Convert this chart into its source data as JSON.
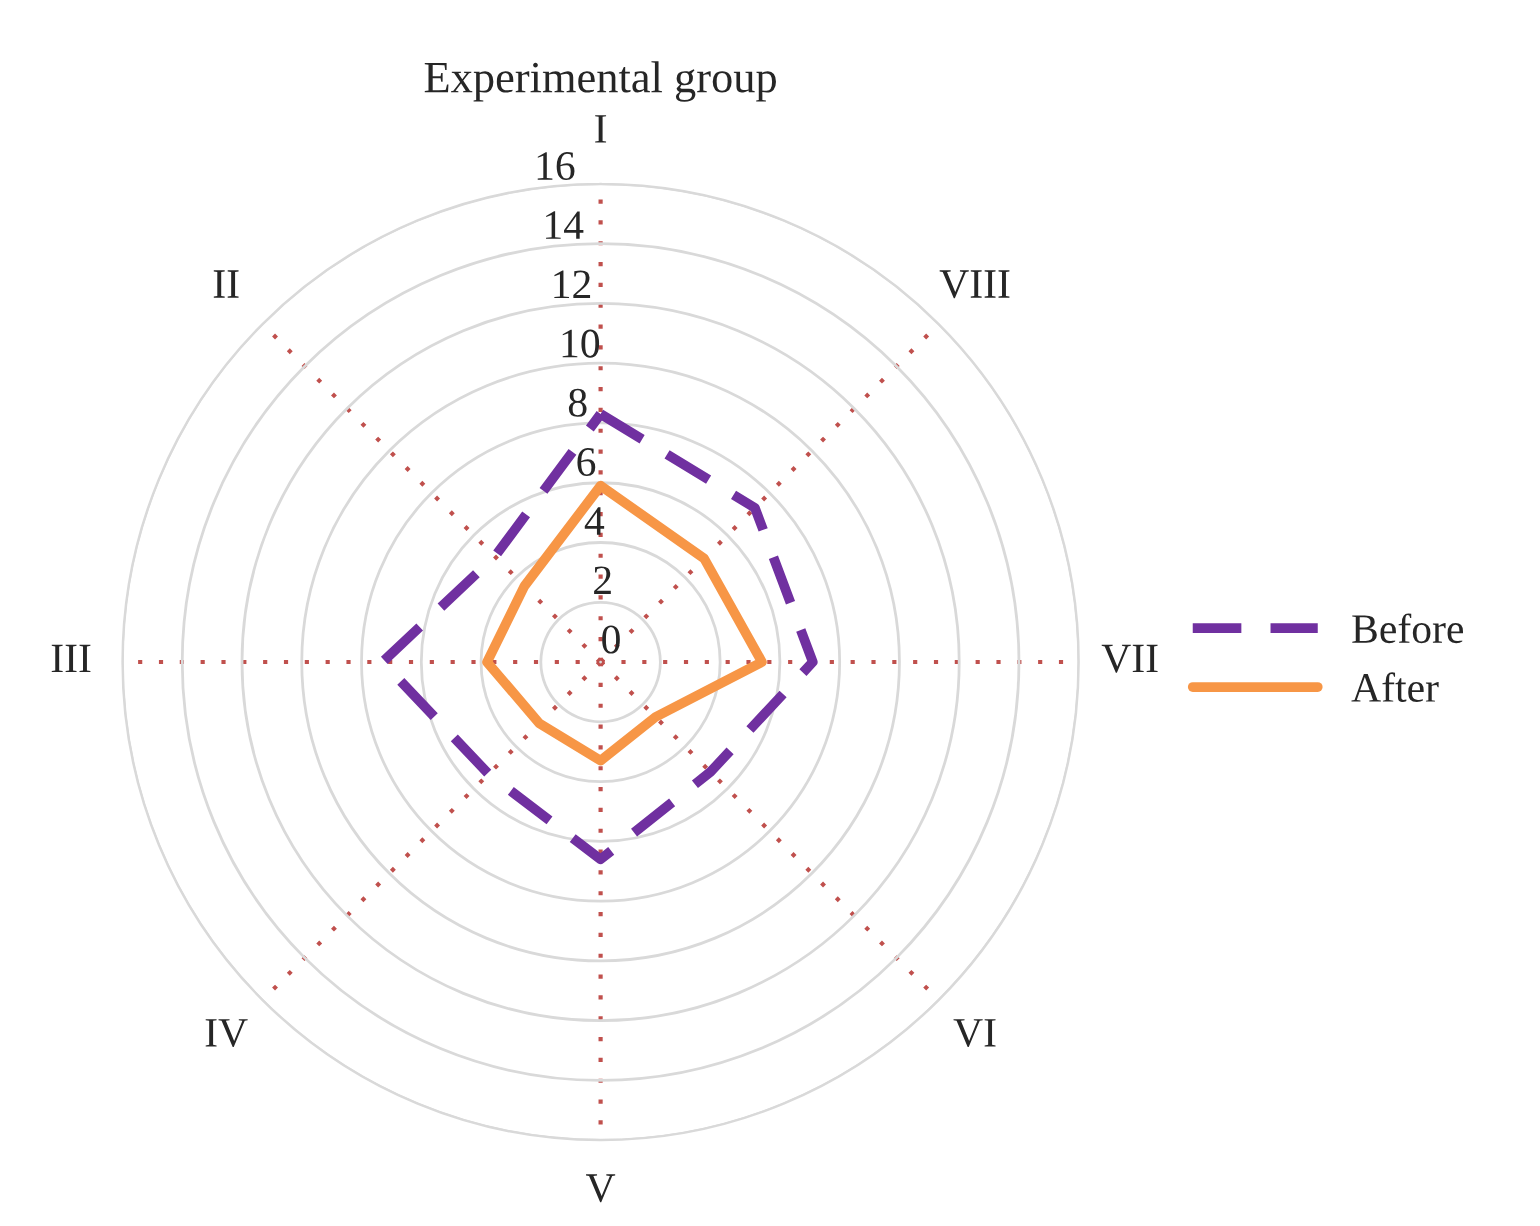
{
  "chart_data": {
    "type": "radar",
    "title": "Experimental group",
    "categories": [
      "I",
      "VIII",
      "VII",
      "VI",
      "V",
      "IV",
      "III",
      "II"
    ],
    "ylim": [
      0,
      16
    ],
    "yticks": [
      0,
      2,
      4,
      6,
      8,
      10,
      12,
      14,
      16
    ],
    "grid": true,
    "legend": "right",
    "series": [
      {
        "name": "Before",
        "color": "#7030a0",
        "line_style": "dashed",
        "values": [
          8.3,
          7.3,
          7.1,
          5.2,
          6.6,
          5.3,
          7.3,
          5.0
        ]
      },
      {
        "name": "After",
        "color": "#f79646",
        "line_style": "solid",
        "values": [
          5.9,
          4.9,
          5.4,
          2.6,
          3.3,
          2.9,
          3.8,
          3.6
        ]
      }
    ]
  }
}
